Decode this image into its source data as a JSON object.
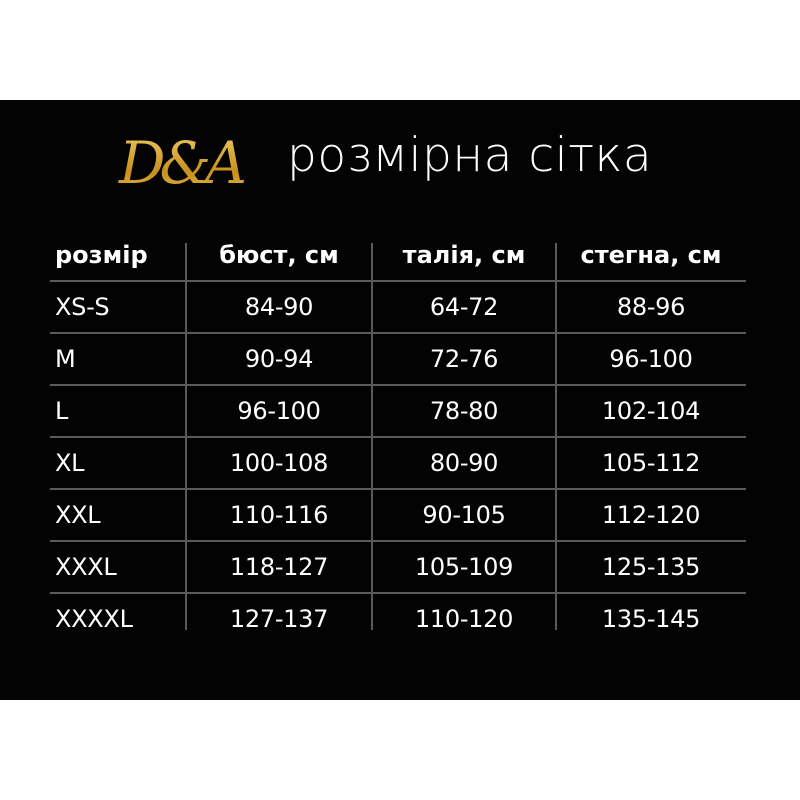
{
  "brand": {
    "logo_text": "D&A"
  },
  "title": "розмірна сітка",
  "colors": {
    "background": "#030303",
    "text": "#ffffff",
    "gridline": "#5a5a5a",
    "logo_gold": "#d9a82e"
  },
  "table": {
    "headers": [
      "розмір",
      "бюст, см",
      "талія, см",
      "стегна, см"
    ],
    "rows": [
      [
        "XS-S",
        "84-90",
        "64-72",
        "88-96"
      ],
      [
        "M",
        "90-94",
        "72-76",
        "96-100"
      ],
      [
        "L",
        "96-100",
        "78-80",
        "102-104"
      ],
      [
        "XL",
        "100-108",
        "80-90",
        "105-112"
      ],
      [
        "XXL",
        "110-116",
        "90-105",
        "112-120"
      ],
      [
        "XXXL",
        "118-127",
        "105-109",
        "125-135"
      ],
      [
        "XXXXL",
        "127-137",
        "110-120",
        "135-145"
      ]
    ]
  }
}
